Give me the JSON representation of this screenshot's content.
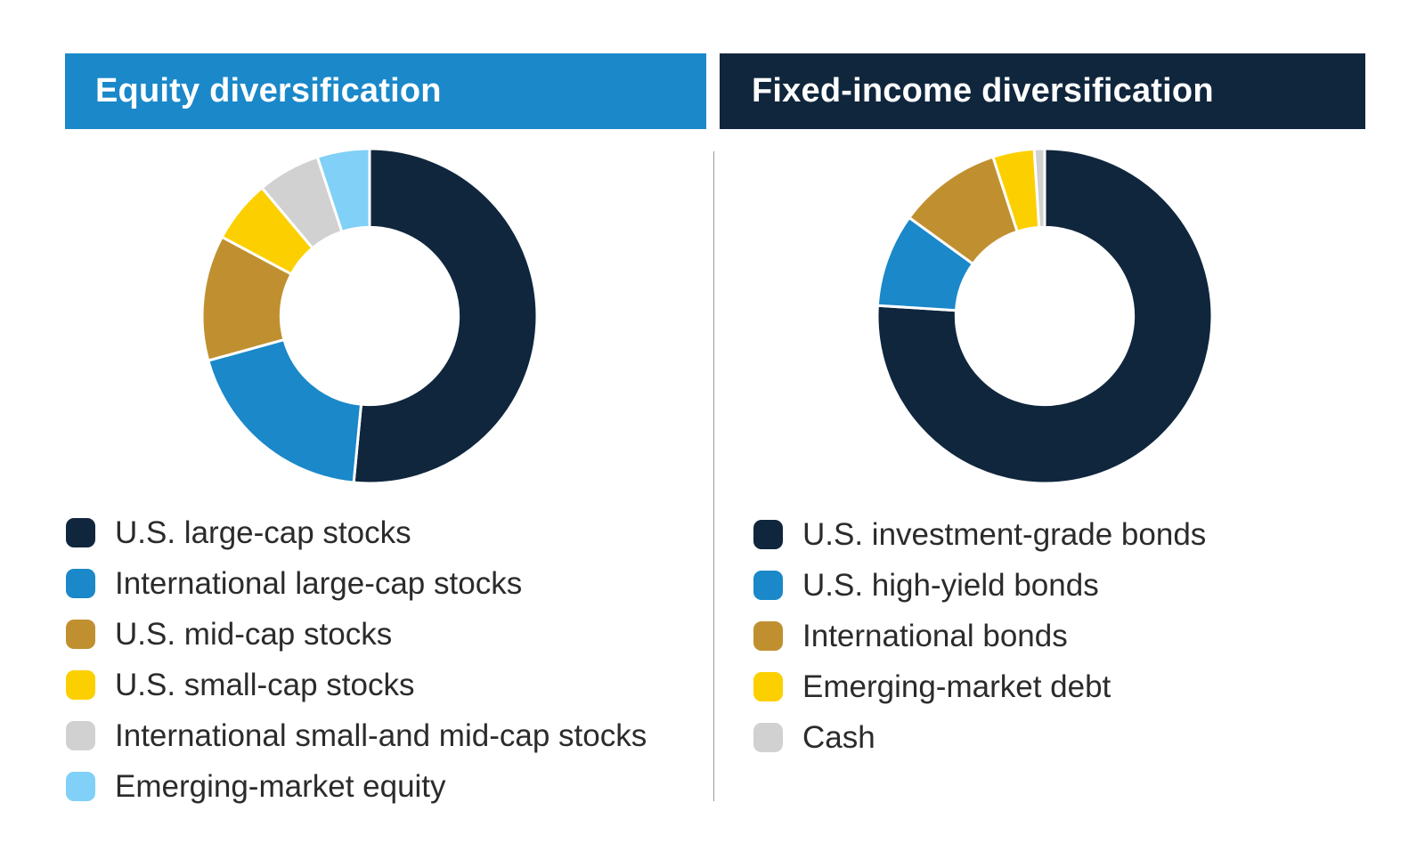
{
  "chart_data": [
    {
      "type": "pie",
      "title": "Equity diversification",
      "header_color": "#1a88c9",
      "categories": [
        "U.S. large-cap stocks",
        "International large-cap stocks",
        "U.S. mid-cap stocks",
        "U.S. small-cap stocks",
        "International small-and mid-cap stocks",
        "Emerging-market equity"
      ],
      "values": [
        51,
        19,
        12,
        6,
        6,
        5
      ],
      "colors": [
        "#10263d",
        "#1a88c9",
        "#c09030",
        "#fcd000",
        "#d1d1d1",
        "#80d0f7"
      ],
      "hole": 0.53,
      "legend": "bottom"
    },
    {
      "type": "pie",
      "title": "Fixed-income diversification",
      "header_color": "#10263d",
      "categories": [
        "U.S. investment-grade bonds",
        "U.S. high-yield bonds",
        "International bonds",
        "Emerging-market debt",
        "Cash"
      ],
      "values": [
        76,
        9,
        10,
        4,
        1
      ],
      "colors": [
        "#10263d",
        "#1a88c9",
        "#c09030",
        "#fcd000",
        "#d1d1d1"
      ],
      "hole": 0.53,
      "legend": "bottom"
    }
  ]
}
